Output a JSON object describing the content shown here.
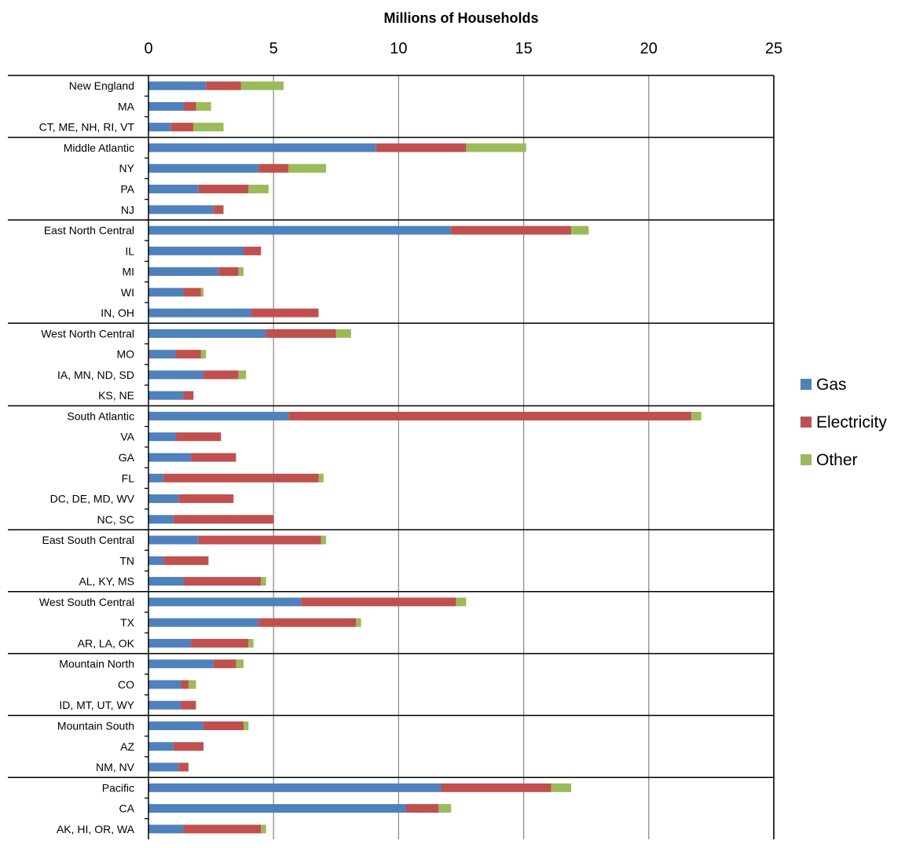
{
  "chart_data": {
    "type": "bar",
    "orientation": "horizontal",
    "stacked": true,
    "title": "Millions of Households",
    "xlabel": "",
    "ylabel": "",
    "xlim": [
      0,
      25
    ],
    "x_ticks": [
      0,
      5,
      10,
      15,
      20,
      25
    ],
    "x_axis_position": "top",
    "grid": true,
    "legend_position": "right",
    "categories": [
      "New England",
      "MA",
      "CT, ME, NH, RI, VT",
      "Middle Atlantic",
      "NY",
      "PA",
      "NJ",
      "East North Central",
      "IL",
      "MI",
      "WI",
      "IN, OH",
      "West North Central",
      "MO",
      "IA, MN, ND, SD",
      "KS, NE",
      "South Atlantic",
      "VA",
      "GA",
      "FL",
      "DC, DE, MD, WV",
      "NC, SC",
      "East South Central",
      "TN",
      "AL, KY, MS",
      "West South Central",
      "TX",
      "AR, LA, OK",
      "Mountain North",
      "CO",
      "ID, MT, UT, WY",
      "Mountain South",
      "AZ",
      "NM, NV",
      "Pacific",
      "CA",
      "AK, HI, OR, WA"
    ],
    "group_headers": [
      "New England",
      "Middle Atlantic",
      "East North Central",
      "West North Central",
      "South Atlantic",
      "East South Central",
      "West South Central",
      "Mountain North",
      "Mountain South",
      "Pacific"
    ],
    "series": [
      {
        "name": "Gas",
        "color": "#4F81BD",
        "values": [
          2.3,
          1.4,
          0.9,
          9.1,
          4.4,
          2.0,
          2.6,
          12.1,
          3.8,
          2.8,
          1.4,
          4.1,
          4.7,
          1.1,
          2.2,
          1.4,
          5.6,
          1.1,
          1.7,
          0.6,
          1.2,
          1.0,
          2.0,
          0.6,
          1.4,
          6.1,
          4.4,
          1.7,
          2.6,
          1.3,
          1.3,
          2.2,
          1.0,
          1.2,
          11.7,
          10.3,
          1.4
        ]
      },
      {
        "name": "Electricity",
        "color": "#C0504D",
        "values": [
          1.4,
          0.5,
          0.9,
          3.6,
          1.2,
          2.0,
          0.4,
          4.8,
          0.7,
          0.8,
          0.7,
          2.7,
          2.8,
          1.0,
          1.4,
          0.4,
          16.1,
          1.8,
          1.8,
          6.2,
          2.2,
          4.0,
          4.9,
          1.8,
          3.1,
          6.2,
          3.9,
          2.3,
          0.9,
          0.3,
          0.6,
          1.6,
          1.2,
          0.4,
          4.4,
          1.3,
          3.1
        ]
      },
      {
        "name": "Other",
        "color": "#9BBB59",
        "values": [
          1.7,
          0.6,
          1.2,
          2.4,
          1.5,
          0.8,
          0.0,
          0.7,
          0.0,
          0.2,
          0.1,
          0.0,
          0.6,
          0.2,
          0.3,
          0.0,
          0.4,
          0.0,
          0.0,
          0.2,
          0.0,
          0.0,
          0.2,
          0.0,
          0.2,
          0.4,
          0.2,
          0.2,
          0.3,
          0.3,
          0.0,
          0.2,
          0.0,
          0.0,
          0.8,
          0.5,
          0.2
        ]
      }
    ]
  }
}
